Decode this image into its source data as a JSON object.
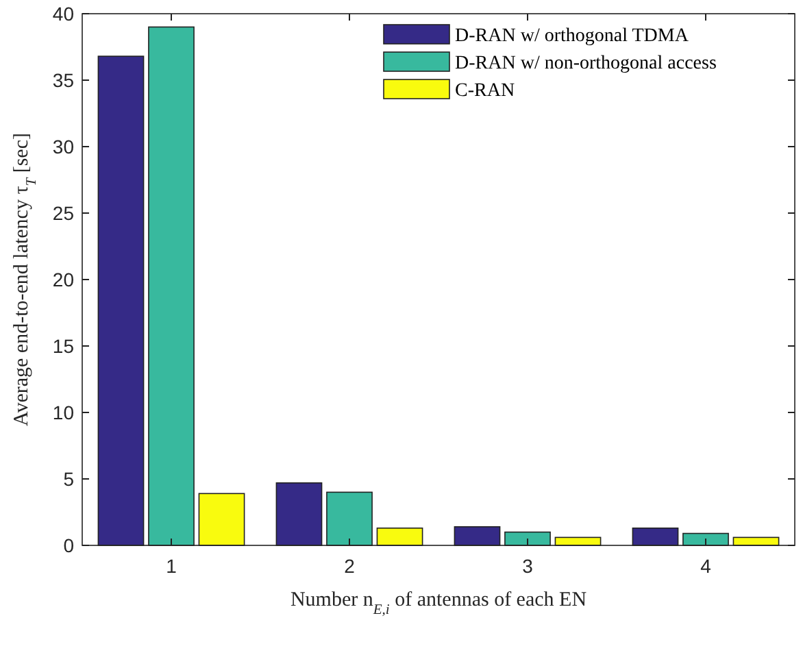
{
  "chart_data": {
    "type": "bar",
    "xlabel": "Number n$_{E,i}$ of antennas of each EN",
    "ylabel": "Average end-to-end latency τ$_{T}$ [sec]",
    "categories": [
      "1",
      "2",
      "3",
      "4"
    ],
    "series": [
      {
        "name": "D-RAN w/ orthogonal TDMA",
        "color": "#352a87",
        "values": [
          36.8,
          4.7,
          1.4,
          1.3
        ]
      },
      {
        "name": "D-RAN w/ non-orthogonal access",
        "color": "#38b99e",
        "values": [
          39.0,
          4.0,
          1.0,
          0.9
        ]
      },
      {
        "name": "C-RAN",
        "color": "#f9fb0e",
        "values": [
          3.9,
          1.3,
          0.6,
          0.6
        ]
      }
    ],
    "ylim": [
      0,
      40
    ],
    "yticks": [
      0,
      5,
      10,
      15,
      20,
      25,
      30,
      35,
      40
    ],
    "grid": false,
    "legend": "top right"
  }
}
